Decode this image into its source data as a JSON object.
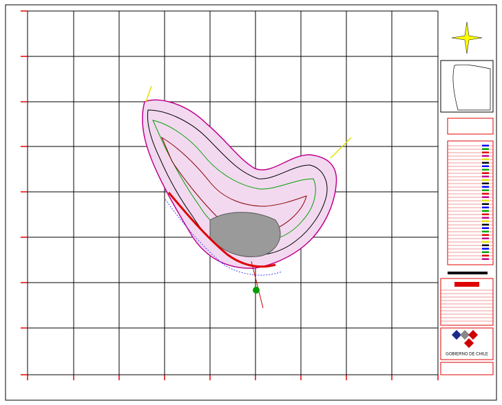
{
  "logo": {
    "text": "GOBIERNO DE CHILE"
  }
}
